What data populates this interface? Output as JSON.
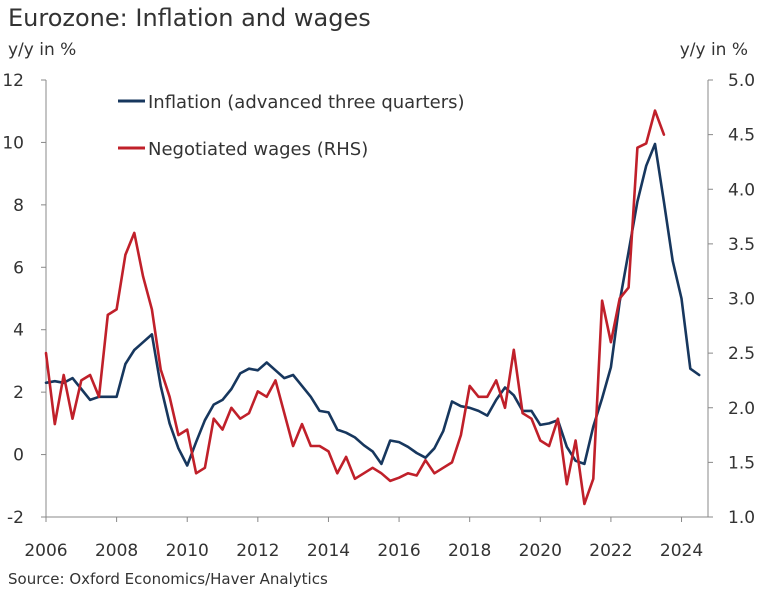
{
  "chart_data": {
    "type": "line",
    "title": "Eurozone: Inflation and wages",
    "ylabel": "y/y in %",
    "ylabel_right": "y/y in %",
    "xlabel": "",
    "source": "Source: Oxford Economics/Haver Analytics",
    "xlim": [
      2006,
      2024.75
    ],
    "ylim": [
      -2,
      12
    ],
    "ylim_right": [
      1.0,
      5.0
    ],
    "x_ticks": [
      2006,
      2008,
      2010,
      2012,
      2014,
      2016,
      2018,
      2020,
      2022,
      2024
    ],
    "x_tick_labels": [
      "2006",
      "2008",
      "2010",
      "2012",
      "2014",
      "2016",
      "2018",
      "2020",
      "2022",
      "2024"
    ],
    "y_ticks": [
      -2,
      0,
      2,
      4,
      6,
      8,
      10,
      12
    ],
    "y_tick_labels": [
      "-2",
      "0",
      "2",
      "4",
      "6",
      "8",
      "10",
      "12"
    ],
    "y_ticks_right": [
      1.0,
      1.5,
      2.0,
      2.5,
      3.0,
      3.5,
      4.0,
      4.5,
      5.0
    ],
    "y_tick_labels_right": [
      "1.0",
      "1.5",
      "2.0",
      "2.5",
      "3.0",
      "3.5",
      "4.0",
      "4.5",
      "5.0"
    ],
    "legend_position": "top-left",
    "series": [
      {
        "name": "Inflation (advanced three quarters)",
        "axis": "left",
        "color": "#17375e",
        "points": [
          [
            2006.0,
            2.3
          ],
          [
            2006.25,
            2.35
          ],
          [
            2006.5,
            2.3
          ],
          [
            2006.75,
            2.45
          ],
          [
            2007.0,
            2.1
          ],
          [
            2007.25,
            1.75
          ],
          [
            2007.5,
            1.85
          ],
          [
            2007.75,
            1.85
          ],
          [
            2008.0,
            1.85
          ],
          [
            2008.25,
            2.9
          ],
          [
            2008.5,
            3.35
          ],
          [
            2008.75,
            3.6
          ],
          [
            2009.0,
            3.85
          ],
          [
            2009.25,
            2.2
          ],
          [
            2009.5,
            1.0
          ],
          [
            2009.75,
            0.2
          ],
          [
            2010.0,
            -0.35
          ],
          [
            2010.25,
            0.4
          ],
          [
            2010.5,
            1.1
          ],
          [
            2010.75,
            1.6
          ],
          [
            2011.0,
            1.75
          ],
          [
            2011.25,
            2.1
          ],
          [
            2011.5,
            2.6
          ],
          [
            2011.75,
            2.75
          ],
          [
            2012.0,
            2.7
          ],
          [
            2012.25,
            2.95
          ],
          [
            2012.5,
            2.7
          ],
          [
            2012.75,
            2.45
          ],
          [
            2013.0,
            2.55
          ],
          [
            2013.25,
            2.2
          ],
          [
            2013.5,
            1.85
          ],
          [
            2013.75,
            1.4
          ],
          [
            2014.0,
            1.35
          ],
          [
            2014.25,
            0.8
          ],
          [
            2014.5,
            0.7
          ],
          [
            2014.75,
            0.55
          ],
          [
            2015.0,
            0.3
          ],
          [
            2015.25,
            0.1
          ],
          [
            2015.5,
            -0.3
          ],
          [
            2015.75,
            0.45
          ],
          [
            2016.0,
            0.4
          ],
          [
            2016.25,
            0.25
          ],
          [
            2016.5,
            0.05
          ],
          [
            2016.75,
            -0.1
          ],
          [
            2017.0,
            0.2
          ],
          [
            2017.25,
            0.75
          ],
          [
            2017.5,
            1.7
          ],
          [
            2017.75,
            1.55
          ],
          [
            2018.0,
            1.5
          ],
          [
            2018.25,
            1.4
          ],
          [
            2018.5,
            1.25
          ],
          [
            2018.75,
            1.75
          ],
          [
            2019.0,
            2.15
          ],
          [
            2019.25,
            1.9
          ],
          [
            2019.5,
            1.4
          ],
          [
            2019.75,
            1.4
          ],
          [
            2020.0,
            0.95
          ],
          [
            2020.25,
            1.0
          ],
          [
            2020.5,
            1.1
          ],
          [
            2020.75,
            0.25
          ],
          [
            2021.0,
            -0.2
          ],
          [
            2021.25,
            -0.3
          ],
          [
            2021.5,
            0.9
          ],
          [
            2021.75,
            1.8
          ],
          [
            2022.0,
            2.8
          ],
          [
            2022.25,
            4.9
          ],
          [
            2022.5,
            6.5
          ],
          [
            2022.75,
            8.1
          ],
          [
            2023.0,
            9.25
          ],
          [
            2023.25,
            9.95
          ],
          [
            2023.5,
            8.1
          ],
          [
            2023.75,
            6.2
          ],
          [
            2024.0,
            5.0
          ],
          [
            2024.25,
            2.75
          ],
          [
            2024.5,
            2.55
          ]
        ]
      },
      {
        "name": "Negotiated wages (RHS)",
        "axis": "right",
        "color": "#c0202a",
        "points": [
          [
            2006.0,
            2.5
          ],
          [
            2006.25,
            1.85
          ],
          [
            2006.5,
            2.3
          ],
          [
            2006.75,
            1.9
          ],
          [
            2007.0,
            2.25
          ],
          [
            2007.25,
            2.3
          ],
          [
            2007.5,
            2.1
          ],
          [
            2007.75,
            2.85
          ],
          [
            2008.0,
            2.9
          ],
          [
            2008.25,
            3.4
          ],
          [
            2008.5,
            3.6
          ],
          [
            2008.75,
            3.2
          ],
          [
            2009.0,
            2.9
          ],
          [
            2009.25,
            2.35
          ],
          [
            2009.5,
            2.1
          ],
          [
            2009.75,
            1.75
          ],
          [
            2010.0,
            1.8
          ],
          [
            2010.25,
            1.4
          ],
          [
            2010.5,
            1.45
          ],
          [
            2010.75,
            1.9
          ],
          [
            2011.0,
            1.8
          ],
          [
            2011.25,
            2.0
          ],
          [
            2011.5,
            1.9
          ],
          [
            2011.75,
            1.95
          ],
          [
            2012.0,
            2.15
          ],
          [
            2012.25,
            2.1
          ],
          [
            2012.5,
            2.25
          ],
          [
            2012.75,
            1.95
          ],
          [
            2013.0,
            1.65
          ],
          [
            2013.25,
            1.85
          ],
          [
            2013.5,
            1.65
          ],
          [
            2013.75,
            1.65
          ],
          [
            2014.0,
            1.6
          ],
          [
            2014.25,
            1.4
          ],
          [
            2014.5,
            1.55
          ],
          [
            2014.75,
            1.35
          ],
          [
            2015.0,
            1.4
          ],
          [
            2015.25,
            1.45
          ],
          [
            2015.5,
            1.4
          ],
          [
            2015.75,
            1.33
          ],
          [
            2016.0,
            1.36
          ],
          [
            2016.25,
            1.4
          ],
          [
            2016.5,
            1.38
          ],
          [
            2016.75,
            1.52
          ],
          [
            2017.0,
            1.4
          ],
          [
            2017.25,
            1.45
          ],
          [
            2017.5,
            1.5
          ],
          [
            2017.75,
            1.75
          ],
          [
            2018.0,
            2.2
          ],
          [
            2018.25,
            2.1
          ],
          [
            2018.5,
            2.1
          ],
          [
            2018.75,
            2.25
          ],
          [
            2019.0,
            2.0
          ],
          [
            2019.25,
            2.53
          ],
          [
            2019.5,
            1.95
          ],
          [
            2019.75,
            1.9
          ],
          [
            2020.0,
            1.7
          ],
          [
            2020.25,
            1.65
          ],
          [
            2020.5,
            1.9
          ],
          [
            2020.75,
            1.3
          ],
          [
            2021.0,
            1.7
          ],
          [
            2021.25,
            1.12
          ],
          [
            2021.5,
            1.35
          ],
          [
            2021.75,
            2.98
          ],
          [
            2022.0,
            2.6
          ],
          [
            2022.25,
            3.0
          ],
          [
            2022.5,
            3.1
          ],
          [
            2022.75,
            4.38
          ],
          [
            2023.0,
            4.42
          ],
          [
            2023.25,
            4.72
          ],
          [
            2023.5,
            4.5
          ]
        ]
      }
    ]
  }
}
